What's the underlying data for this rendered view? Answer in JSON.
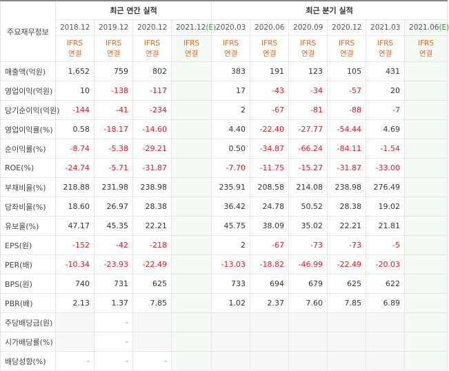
{
  "table": {
    "corner": "주요재무정보",
    "groups": [
      {
        "label": "최근 연간 실적",
        "span": 4
      },
      {
        "label": "최근 분기 실적",
        "span": 6
      }
    ],
    "columns": [
      {
        "period": "2018.12",
        "estimate": null,
        "gaap": "IFRS",
        "basis": "연결"
      },
      {
        "period": "2019.12",
        "estimate": null,
        "gaap": "IFRS",
        "basis": "연결"
      },
      {
        "period": "2020.12",
        "estimate": null,
        "gaap": "IFRS",
        "basis": "연결"
      },
      {
        "period": "2021.12",
        "estimate": "(E)",
        "gaap": "IFRS",
        "basis": "연결"
      },
      {
        "period": "2020.03",
        "estimate": null,
        "gaap": "IFRS",
        "basis": "연결"
      },
      {
        "period": "2020.06",
        "estimate": null,
        "gaap": "IFRS",
        "basis": "연결"
      },
      {
        "period": "2020.09",
        "estimate": null,
        "gaap": "IFRS",
        "basis": "연결"
      },
      {
        "period": "2020.12",
        "estimate": null,
        "gaap": "IFRS",
        "basis": "연결"
      },
      {
        "period": "2021.03",
        "estimate": null,
        "gaap": "IFRS",
        "basis": "연결"
      },
      {
        "period": "2021.06",
        "estimate": "(E)",
        "gaap": "IFRS",
        "basis": "연결"
      }
    ],
    "rows": [
      {
        "label": "매출액(억원)",
        "cells": [
          "1,652",
          "759",
          "802",
          null,
          "383",
          "191",
          "123",
          "105",
          "431",
          null
        ]
      },
      {
        "label": "영업이익(억원)",
        "cells": [
          "10",
          "-138",
          "-117",
          null,
          "17",
          "-43",
          "-34",
          "-57",
          "20",
          null
        ]
      },
      {
        "label": "당기순이익(억원)",
        "cells": [
          "-144",
          "-41",
          "-234",
          null,
          "2",
          "-67",
          "-81",
          "-88",
          "-7",
          null
        ]
      },
      {
        "label": "영업이익률(%)",
        "cells": [
          "0.58",
          "-18.17",
          "-14.60",
          null,
          "4.40",
          "-22.40",
          "-27.77",
          "-54.44",
          "4.69",
          null
        ]
      },
      {
        "label": "순이익률(%)",
        "cells": [
          "-8.74",
          "-5.38",
          "-29.21",
          null,
          "0.50",
          "-34.87",
          "-66.24",
          "-84.11",
          "-1.54",
          null
        ]
      },
      {
        "label": "ROE(%)",
        "cells": [
          "-24.74",
          "-5.71",
          "-31.87",
          null,
          "-7.70",
          "-11.75",
          "-15.27",
          "-31.87",
          "-33.00",
          null
        ]
      },
      {
        "label": "부채비율(%)",
        "cells": [
          "218.88",
          "231.98",
          "238.98",
          null,
          "235.91",
          "208.58",
          "214.08",
          "238.98",
          "276.49",
          null
        ]
      },
      {
        "label": "당좌비율(%)",
        "cells": [
          "18.60",
          "26.97",
          "28.38",
          null,
          "36.42",
          "24.78",
          "50.52",
          "28.38",
          "19.02",
          null
        ]
      },
      {
        "label": "유보율(%)",
        "cells": [
          "47.17",
          "45.35",
          "22.21",
          null,
          "45.75",
          "38.09",
          "35.02",
          "22.21",
          "21.81",
          null
        ]
      },
      {
        "label": "EPS(원)",
        "cells": [
          "-152",
          "-42",
          "-218",
          null,
          "2",
          "-67",
          "-73",
          "-73",
          "-5",
          null
        ]
      },
      {
        "label": "PER(배)",
        "cells": [
          "-10.34",
          "-23.93",
          "-22.49",
          null,
          "-13.03",
          "-18.82",
          "-46.99",
          "-22.49",
          "-20.03",
          null
        ]
      },
      {
        "label": "BPS(원)",
        "cells": [
          "740",
          "731",
          "625",
          null,
          "733",
          "694",
          "679",
          "625",
          "622",
          null
        ]
      },
      {
        "label": "PBR(배)",
        "cells": [
          "2.13",
          "1.37",
          "7.85",
          null,
          "1.02",
          "2.37",
          "7.60",
          "7.85",
          "6.89",
          null
        ]
      },
      {
        "label": "주당배당금(원)",
        "cells": [
          null,
          "-",
          null,
          null,
          null,
          null,
          null,
          null,
          null,
          null
        ]
      },
      {
        "label": "시가배당률(%)",
        "cells": [
          null,
          "-",
          null,
          null,
          null,
          null,
          null,
          null,
          null,
          null
        ]
      },
      {
        "label": "배당성향(%)",
        "cells": [
          "-",
          "-",
          "-",
          null,
          null,
          null,
          null,
          null,
          null,
          null
        ]
      }
    ]
  }
}
